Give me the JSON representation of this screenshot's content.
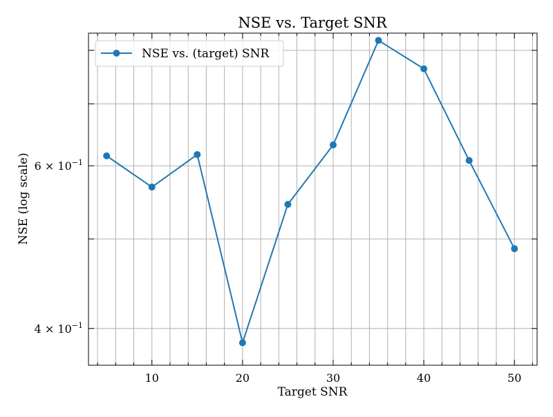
{
  "chart_data": {
    "type": "line",
    "title": "NSE vs. Target SNR",
    "xlabel": "Target SNR",
    "ylabel": "NSE (log scale)",
    "xlim": [
      3,
      52.5
    ],
    "ylim": [
      0.365,
      0.835
    ],
    "yscale": "log",
    "grid": true,
    "legend_position": "upper-left",
    "x_ticks": [
      10,
      20,
      30,
      40,
      50
    ],
    "x_tick_labels": [
      "10",
      "20",
      "30",
      "40",
      "50"
    ],
    "y_ticks": [
      0.4,
      0.6
    ],
    "y_tick_labels": [
      {
        "mantissa": "4",
        "base": "10",
        "exponent": "−1"
      },
      {
        "mantissa": "6",
        "base": "10",
        "exponent": "−1"
      }
    ],
    "series": [
      {
        "name": "NSE vs. (target) SNR",
        "color": "#1f77b4",
        "marker": "circle",
        "x": [
          5,
          10,
          15,
          20,
          25,
          30,
          35,
          40,
          45,
          50
        ],
        "y": [
          0.615,
          0.569,
          0.617,
          0.386,
          0.545,
          0.632,
          0.82,
          0.764,
          0.608,
          0.488
        ]
      }
    ]
  }
}
